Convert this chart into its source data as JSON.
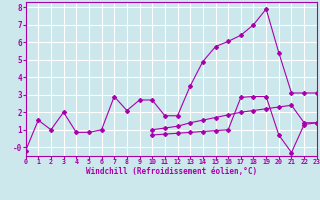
{
  "xlabel": "Windchill (Refroidissement éolien,°C)",
  "background_color": "#cce8ec",
  "grid_color": "#ffffff",
  "line_color": "#aa00aa",
  "x_values": [
    0,
    1,
    2,
    3,
    4,
    5,
    6,
    7,
    8,
    9,
    10,
    11,
    12,
    13,
    14,
    15,
    16,
    17,
    18,
    19,
    20,
    21,
    22,
    23
  ],
  "series1": [
    -0.2,
    1.55,
    1.0,
    2.0,
    0.85,
    0.85,
    1.0,
    2.9,
    2.1,
    2.7,
    2.7,
    1.8,
    1.8,
    3.5,
    4.9,
    5.75,
    6.05,
    6.4,
    7.0,
    7.9,
    5.4,
    3.1,
    3.1,
    3.1
  ],
  "series2": [
    null,
    null,
    null,
    null,
    null,
    null,
    null,
    null,
    null,
    null,
    1.0,
    1.1,
    1.2,
    1.4,
    1.55,
    1.7,
    1.85,
    2.0,
    2.1,
    2.2,
    2.3,
    2.4,
    1.4,
    1.4
  ],
  "series3": [
    null,
    null,
    null,
    null,
    null,
    null,
    null,
    null,
    null,
    null,
    0.7,
    0.75,
    0.8,
    0.85,
    0.9,
    0.95,
    1.0,
    2.85,
    2.9,
    2.9,
    0.7,
    -0.3,
    1.3,
    1.4
  ],
  "xlim": [
    0,
    23
  ],
  "ylim": [
    -0.5,
    8.3
  ],
  "yticks": [
    0,
    1,
    2,
    3,
    4,
    5,
    6,
    7,
    8
  ],
  "xticks": [
    0,
    1,
    2,
    3,
    4,
    5,
    6,
    7,
    8,
    9,
    10,
    11,
    12,
    13,
    14,
    15,
    16,
    17,
    18,
    19,
    20,
    21,
    22,
    23
  ]
}
